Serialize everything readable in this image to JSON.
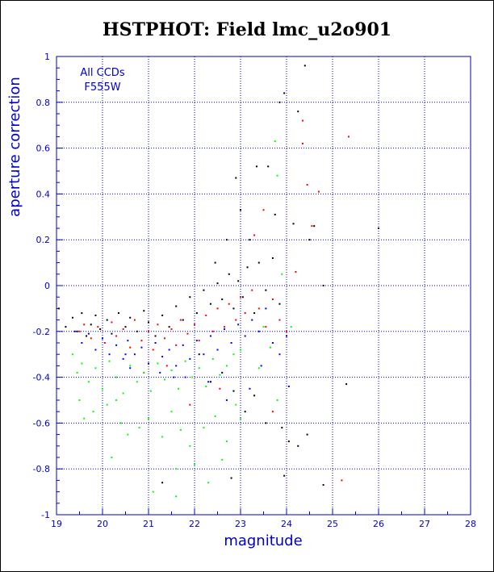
{
  "colors": {
    "accent": "#0000cc",
    "grid": "#0000cc",
    "series_black": "#000000",
    "series_red": "#ff0000",
    "series_blue": "#0000ff",
    "series_green": "#00ff00"
  },
  "chart_data": {
    "type": "scatter",
    "title": "HSTPHOT: Field lmc_u2o901",
    "xlabel": "magnitude",
    "ylabel": "aperture correction",
    "xlim": [
      19,
      28
    ],
    "ylim": [
      -1,
      1
    ],
    "xticks": [
      "19",
      "20",
      "21",
      "22",
      "23",
      "24",
      "25",
      "26",
      "27",
      "28"
    ],
    "yticks": [
      "1",
      "0.8",
      "0.6",
      "0.4",
      "0.2",
      "0",
      "-0.2",
      "-0.4",
      "-0.6",
      "-0.8",
      "-1"
    ],
    "grid": true,
    "annotations": [
      "All CCDs",
      "F555W"
    ],
    "series": [
      {
        "color": "#000000",
        "points": [
          [
            19.05,
            -0.1
          ],
          [
            19.2,
            -0.18
          ],
          [
            19.35,
            -0.14
          ],
          [
            19.45,
            -0.2
          ],
          [
            19.55,
            -0.12
          ],
          [
            19.65,
            -0.22
          ],
          [
            19.75,
            -0.17
          ],
          [
            19.85,
            -0.13
          ],
          [
            19.95,
            -0.19
          ],
          [
            20.1,
            -0.15
          ],
          [
            20.2,
            -0.21
          ],
          [
            20.35,
            -0.12
          ],
          [
            20.5,
            -0.18
          ],
          [
            20.6,
            -0.14
          ],
          [
            20.75,
            -0.2
          ],
          [
            20.9,
            -0.11
          ],
          [
            21.0,
            -0.16
          ],
          [
            21.15,
            -0.22
          ],
          [
            21.3,
            -0.13
          ],
          [
            21.45,
            -0.18
          ],
          [
            21.6,
            -0.09
          ],
          [
            21.75,
            -0.15
          ],
          [
            21.9,
            -0.05
          ],
          [
            22.05,
            -0.12
          ],
          [
            22.2,
            -0.02
          ],
          [
            22.35,
            -0.08
          ],
          [
            22.5,
            0.01
          ],
          [
            22.6,
            -0.06
          ],
          [
            22.75,
            0.05
          ],
          [
            22.85,
            -0.1
          ],
          [
            22.95,
            0.02
          ],
          [
            23.05,
            -0.05
          ],
          [
            23.15,
            0.08
          ],
          [
            23.3,
            -0.12
          ],
          [
            23.4,
            0.1
          ],
          [
            23.55,
            -0.02
          ],
          [
            23.7,
            0.12
          ],
          [
            23.85,
            -0.08
          ],
          [
            23.0,
            0.33
          ],
          [
            23.2,
            0.2
          ],
          [
            23.35,
            0.52
          ],
          [
            23.6,
            0.52
          ],
          [
            23.75,
            0.31
          ],
          [
            23.85,
            0.8
          ],
          [
            23.95,
            0.84
          ],
          [
            24.15,
            0.27
          ],
          [
            24.25,
            0.76
          ],
          [
            24.4,
            0.96
          ],
          [
            24.5,
            0.2
          ],
          [
            24.6,
            0.26
          ],
          [
            24.8,
            0.0
          ],
          [
            22.1,
            -0.3
          ],
          [
            22.35,
            -0.42
          ],
          [
            22.6,
            -0.38
          ],
          [
            22.85,
            -0.46
          ],
          [
            23.1,
            -0.55
          ],
          [
            23.3,
            -0.48
          ],
          [
            23.55,
            -0.6
          ],
          [
            23.9,
            -0.62
          ],
          [
            24.05,
            -0.68
          ],
          [
            24.25,
            -0.7
          ],
          [
            24.45,
            -0.65
          ],
          [
            24.8,
            -0.87
          ],
          [
            25.3,
            -0.43
          ],
          [
            26.0,
            0.25
          ],
          [
            21.3,
            -0.86
          ],
          [
            22.8,
            -0.84
          ],
          [
            23.95,
            -0.83
          ],
          [
            22.9,
            0.47
          ],
          [
            22.7,
            0.2
          ],
          [
            22.45,
            0.1
          ]
        ]
      },
      {
        "color": "#ff0000",
        "points": [
          [
            19.5,
            -0.2
          ],
          [
            19.6,
            -0.17
          ],
          [
            19.75,
            -0.23
          ],
          [
            19.9,
            -0.18
          ],
          [
            20.05,
            -0.25
          ],
          [
            20.2,
            -0.16
          ],
          [
            20.3,
            -0.22
          ],
          [
            20.45,
            -0.19
          ],
          [
            20.6,
            -0.27
          ],
          [
            20.7,
            -0.15
          ],
          [
            20.85,
            -0.24
          ],
          [
            21.0,
            -0.2
          ],
          [
            21.1,
            -0.28
          ],
          [
            21.2,
            -0.17
          ],
          [
            21.35,
            -0.23
          ],
          [
            21.5,
            -0.19
          ],
          [
            21.6,
            -0.26
          ],
          [
            21.7,
            -0.15
          ],
          [
            21.85,
            -0.21
          ],
          [
            22.0,
            -0.17
          ],
          [
            22.1,
            -0.24
          ],
          [
            22.25,
            -0.13
          ],
          [
            22.4,
            -0.2
          ],
          [
            22.5,
            -0.1
          ],
          [
            22.65,
            -0.18
          ],
          [
            22.75,
            -0.08
          ],
          [
            22.9,
            -0.15
          ],
          [
            23.0,
            -0.05
          ],
          [
            23.1,
            -0.12
          ],
          [
            23.25,
            -0.02
          ],
          [
            23.4,
            -0.1
          ],
          [
            23.55,
            -0.18
          ],
          [
            23.7,
            -0.06
          ],
          [
            23.85,
            -0.15
          ],
          [
            24.0,
            -0.2
          ],
          [
            24.2,
            0.06
          ],
          [
            24.35,
            0.62
          ],
          [
            24.45,
            0.44
          ],
          [
            24.55,
            0.26
          ],
          [
            24.7,
            0.41
          ],
          [
            25.35,
            0.65
          ],
          [
            24.35,
            0.72
          ],
          [
            25.2,
            -0.85
          ],
          [
            23.5,
            0.33
          ],
          [
            23.3,
            0.22
          ],
          [
            22.55,
            -0.45
          ],
          [
            21.9,
            -0.52
          ],
          [
            21.4,
            -0.35
          ],
          [
            20.9,
            -0.38
          ],
          [
            23.7,
            -0.55
          ]
        ]
      },
      {
        "color": "#0000ff",
        "points": [
          [
            19.4,
            -0.2
          ],
          [
            19.55,
            -0.25
          ],
          [
            19.7,
            -0.21
          ],
          [
            19.85,
            -0.28
          ],
          [
            20.0,
            -0.23
          ],
          [
            20.15,
            -0.3
          ],
          [
            20.3,
            -0.26
          ],
          [
            20.45,
            -0.32
          ],
          [
            20.55,
            -0.24
          ],
          [
            20.7,
            -0.3
          ],
          [
            20.85,
            -0.27
          ],
          [
            21.0,
            -0.34
          ],
          [
            21.15,
            -0.25
          ],
          [
            21.3,
            -0.31
          ],
          [
            21.45,
            -0.28
          ],
          [
            21.6,
            -0.35
          ],
          [
            21.75,
            -0.26
          ],
          [
            21.9,
            -0.32
          ],
          [
            22.05,
            -0.24
          ],
          [
            22.2,
            -0.3
          ],
          [
            22.35,
            -0.22
          ],
          [
            22.5,
            -0.28
          ],
          [
            22.65,
            -0.19
          ],
          [
            22.8,
            -0.25
          ],
          [
            22.95,
            -0.17
          ],
          [
            23.1,
            -0.22
          ],
          [
            23.25,
            -0.15
          ],
          [
            23.4,
            -0.2
          ],
          [
            23.55,
            -0.1
          ],
          [
            23.7,
            -0.25
          ],
          [
            23.85,
            -0.3
          ],
          [
            24.0,
            -0.22
          ],
          [
            23.2,
            -0.45
          ],
          [
            23.45,
            -0.35
          ],
          [
            22.3,
            -0.42
          ],
          [
            21.8,
            -0.4
          ],
          [
            21.25,
            -0.38
          ],
          [
            20.6,
            -0.36
          ],
          [
            24.05,
            -0.44
          ],
          [
            22.7,
            -0.5
          ],
          [
            20.5,
            -0.3
          ],
          [
            21.55,
            -0.4
          ]
        ]
      },
      {
        "color": "#00ff00",
        "points": [
          [
            19.35,
            -0.3
          ],
          [
            19.45,
            -0.38
          ],
          [
            19.55,
            -0.34
          ],
          [
            19.7,
            -0.42
          ],
          [
            19.85,
            -0.36
          ],
          [
            20.0,
            -0.45
          ],
          [
            20.15,
            -0.33
          ],
          [
            20.3,
            -0.4
          ],
          [
            20.45,
            -0.47
          ],
          [
            20.6,
            -0.35
          ],
          [
            20.75,
            -0.42
          ],
          [
            20.9,
            -0.38
          ],
          [
            21.05,
            -0.46
          ],
          [
            21.2,
            -0.34
          ],
          [
            21.35,
            -0.41
          ],
          [
            21.5,
            -0.37
          ],
          [
            21.65,
            -0.45
          ],
          [
            21.8,
            -0.33
          ],
          [
            21.95,
            -0.4
          ],
          [
            22.1,
            -0.36
          ],
          [
            22.25,
            -0.44
          ],
          [
            22.4,
            -0.32
          ],
          [
            22.55,
            -0.39
          ],
          [
            22.7,
            -0.35
          ],
          [
            22.85,
            -0.3
          ],
          [
            23.0,
            -0.28
          ],
          [
            19.5,
            -0.5
          ],
          [
            19.8,
            -0.55
          ],
          [
            20.1,
            -0.52
          ],
          [
            20.4,
            -0.6
          ],
          [
            20.55,
            -0.65
          ],
          [
            20.8,
            -0.62
          ],
          [
            21.0,
            -0.58
          ],
          [
            21.3,
            -0.66
          ],
          [
            21.5,
            -0.55
          ],
          [
            21.7,
            -0.63
          ],
          [
            21.9,
            -0.7
          ],
          [
            22.2,
            -0.62
          ],
          [
            22.45,
            -0.57
          ],
          [
            22.7,
            -0.68
          ],
          [
            23.0,
            -0.58
          ],
          [
            19.6,
            -0.58
          ],
          [
            20.3,
            -0.5
          ],
          [
            21.6,
            -0.8
          ],
          [
            22.0,
            -0.78
          ],
          [
            22.6,
            -0.76
          ],
          [
            21.1,
            -0.9
          ],
          [
            21.6,
            -0.92
          ],
          [
            22.3,
            -0.86
          ],
          [
            23.75,
            0.63
          ],
          [
            23.8,
            0.48
          ],
          [
            23.5,
            -0.18
          ],
          [
            23.65,
            -0.27
          ],
          [
            23.4,
            -0.36
          ],
          [
            24.1,
            -0.18
          ],
          [
            23.9,
            0.05
          ],
          [
            23.8,
            -0.5
          ],
          [
            20.2,
            -0.75
          ],
          [
            22.9,
            -0.52
          ]
        ]
      }
    ]
  }
}
